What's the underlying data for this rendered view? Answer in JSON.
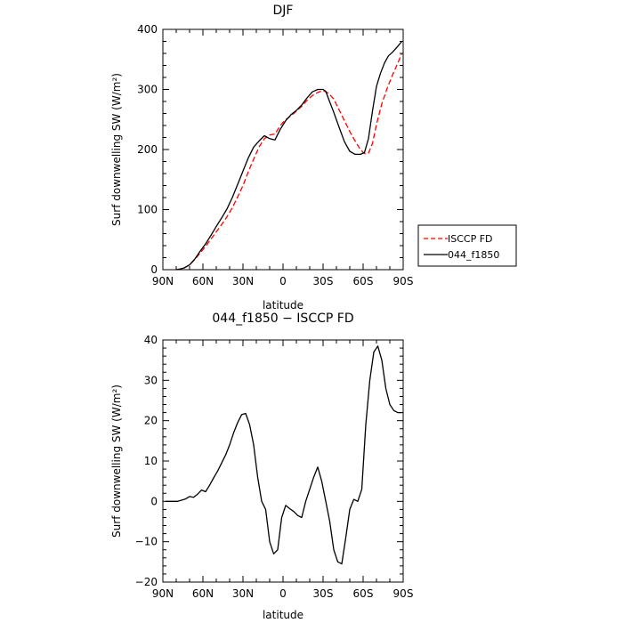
{
  "chart_data": [
    {
      "type": "line",
      "title": "DJF",
      "xlabel": "latitude",
      "ylabel": "Surf downwelling SW (W/m²)",
      "xlim": [
        90,
        -90
      ],
      "ylim": [
        0,
        400
      ],
      "x_ticks": [
        90,
        60,
        30,
        0,
        -30,
        -60,
        -90
      ],
      "x_tick_labels": [
        "90N",
        "60N",
        "30N",
        "0",
        "30S",
        "60S",
        "90S"
      ],
      "y_ticks": [
        0,
        100,
        200,
        300,
        400
      ],
      "y_tick_labels": [
        "0",
        "100",
        "200",
        "300",
        "400"
      ],
      "grid": false,
      "legend_position": "right",
      "series": [
        {
          "name": "ISCCP FD",
          "color": "#ff0000",
          "dash": "dashed",
          "x": [
            80,
            77,
            74,
            70,
            66,
            62,
            58,
            54,
            50,
            46,
            42,
            38,
            34,
            30,
            26,
            22,
            18,
            14,
            10,
            6,
            2,
            -2,
            -6,
            -10,
            -14,
            -18,
            -22,
            -26,
            -30,
            -34,
            -38,
            -42,
            -46,
            -50,
            -54,
            -58,
            -61,
            -64,
            -67,
            -70,
            -74,
            -78,
            -82,
            -86,
            -89
          ],
          "y": [
            0,
            1,
            3,
            8,
            17,
            28,
            39,
            51,
            63,
            75,
            88,
            103,
            121,
            140,
            163,
            184,
            204,
            218,
            224,
            226,
            240,
            250,
            256,
            264,
            272,
            282,
            290,
            295,
            298,
            294,
            284,
            266,
            248,
            230,
            214,
            200,
            193,
            194,
            210,
            242,
            276,
            302,
            324,
            344,
            360
          ]
        },
        {
          "name": "044_f1850",
          "color": "#000000",
          "dash": "solid",
          "x": [
            80,
            77,
            74,
            70,
            66,
            62,
            58,
            54,
            50,
            46,
            42,
            38,
            34,
            30,
            26,
            22,
            18,
            14,
            10,
            6,
            2,
            -2,
            -6,
            -10,
            -14,
            -18,
            -22,
            -26,
            -30,
            -32,
            -34,
            -38,
            -42,
            -46,
            -50,
            -54,
            -58,
            -61,
            -64,
            -67,
            -70,
            -73,
            -76,
            -79,
            -82,
            -86,
            -89
          ],
          "y": [
            0,
            1,
            3,
            8,
            18,
            31,
            43,
            57,
            72,
            86,
            101,
            120,
            142,
            164,
            186,
            204,
            214,
            223,
            218,
            216,
            234,
            248,
            258,
            265,
            274,
            286,
            296,
            300,
            300,
            297,
            285,
            262,
            237,
            213,
            197,
            192,
            192,
            195,
            218,
            264,
            305,
            327,
            344,
            356,
            362,
            372,
            380
          ]
        }
      ]
    },
    {
      "type": "line",
      "title": "044_f1850 − ISCCP FD",
      "xlabel": "latitude",
      "ylabel": "Surf downwelling SW (W/m²)",
      "xlim": [
        90,
        -90
      ],
      "ylim": [
        -20,
        40
      ],
      "x_ticks": [
        90,
        60,
        30,
        0,
        -30,
        -60,
        -90
      ],
      "x_tick_labels": [
        "90N",
        "60N",
        "30N",
        "0",
        "30S",
        "60S",
        "90S"
      ],
      "y_ticks": [
        -20,
        -10,
        0,
        10,
        20,
        30,
        40
      ],
      "y_tick_labels": [
        "−20",
        "−10",
        "0",
        "10",
        "20",
        "30",
        "40"
      ],
      "grid": false,
      "series": [
        {
          "color": "#000000",
          "dash": "solid",
          "x": [
            88,
            85,
            82,
            79,
            76,
            73,
            70,
            67,
            64,
            61,
            58,
            55,
            52,
            49,
            46,
            43,
            40,
            37,
            34,
            31,
            28,
            25,
            22,
            19,
            16,
            13,
            10,
            7,
            4,
            1,
            -2,
            -5,
            -8,
            -11,
            -14,
            -17,
            -20,
            -23,
            -26,
            -29,
            -32,
            -35,
            -38,
            -41,
            -44,
            -47,
            -50,
            -53,
            -56,
            -59,
            -62,
            -65,
            -68,
            -71,
            -74,
            -77,
            -80,
            -83,
            -86,
            -89
          ],
          "y": [
            0,
            0,
            0,
            0,
            0.3,
            0.6,
            1.2,
            1,
            1.8,
            2.8,
            2.4,
            4,
            5.8,
            7.5,
            9.5,
            11.5,
            14,
            17,
            19.5,
            21.5,
            21.8,
            19,
            14,
            6,
            0,
            -2,
            -10,
            -13,
            -12,
            -4,
            -1,
            -1.8,
            -2.5,
            -3.5,
            -4,
            0,
            3,
            6,
            8.5,
            5,
            0,
            -5,
            -12,
            -15,
            -15.5,
            -9,
            -2,
            0.5,
            0,
            3,
            19,
            30,
            37,
            38.5,
            35,
            28,
            24,
            22.5,
            22,
            22
          ]
        }
      ]
    }
  ]
}
